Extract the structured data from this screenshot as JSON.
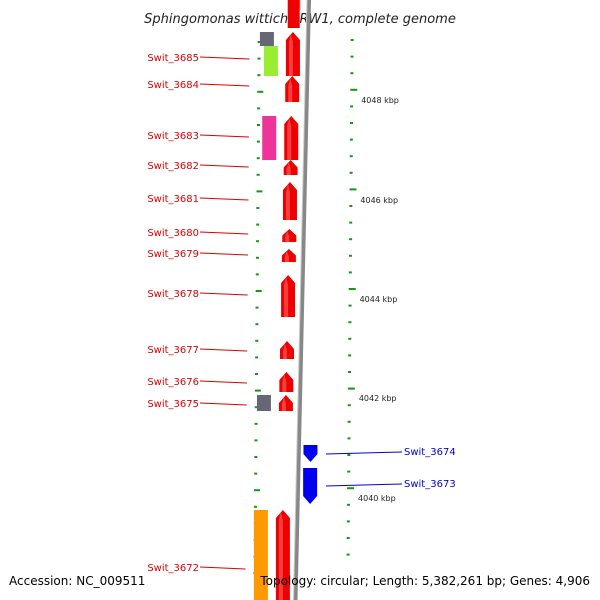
{
  "header": {
    "title": "Sphingomonas wittichii RW1, complete genome"
  },
  "footer": {
    "accession": "Accession: NC_009511",
    "topology": "Topology: circular; Length: 5,382,261 bp; Genes: 4,906"
  },
  "colors": {
    "gene_forward": "#ee0000",
    "gene_reverse": "#0000ee",
    "tick": "#119911",
    "backbone": "#888888",
    "cog_gray": "#666677",
    "cog_lime": "#99ee33",
    "cog_magenta": "#ee3399",
    "cog_orange": "#ff9900",
    "label_forward": "#dd0000",
    "label_reverse": "#0000cc"
  },
  "scale_labels": [
    "4048 kbp",
    "4046 kbp",
    "4044 kbp",
    "4042 kbp",
    "4040 kbp"
  ],
  "genes": [
    {
      "name": "Swit_3685",
      "strand": "forward",
      "cog": [
        "cog_gray",
        "cog_lime"
      ]
    },
    {
      "name": "Swit_3684",
      "strand": "forward",
      "cog": []
    },
    {
      "name": "Swit_3683",
      "strand": "forward",
      "cog": [
        "cog_magenta"
      ]
    },
    {
      "name": "Swit_3682",
      "strand": "forward",
      "cog": []
    },
    {
      "name": "Swit_3681",
      "strand": "forward",
      "cog": []
    },
    {
      "name": "Swit_3680",
      "strand": "forward",
      "cog": []
    },
    {
      "name": "Swit_3679",
      "strand": "forward",
      "cog": []
    },
    {
      "name": "Swit_3678",
      "strand": "forward",
      "cog": []
    },
    {
      "name": "Swit_3677",
      "strand": "forward",
      "cog": []
    },
    {
      "name": "Swit_3676",
      "strand": "forward",
      "cog": []
    },
    {
      "name": "Swit_3675",
      "strand": "forward",
      "cog": [
        "cog_gray"
      ]
    },
    {
      "name": "Swit_3674",
      "strand": "reverse",
      "cog": []
    },
    {
      "name": "Swit_3673",
      "strand": "reverse",
      "cog": []
    },
    {
      "name": "Swit_3672",
      "strand": "forward",
      "cog": [
        "cog_orange"
      ]
    }
  ]
}
